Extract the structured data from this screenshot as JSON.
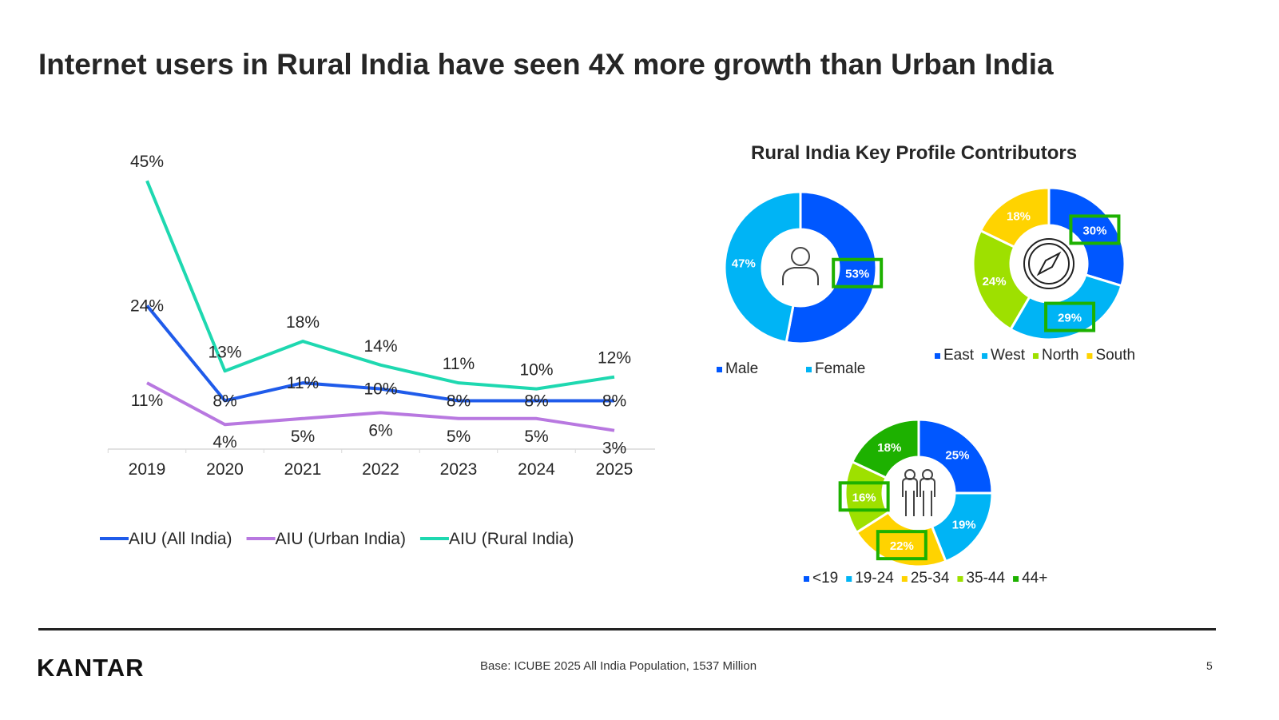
{
  "title": "Internet users in Rural India have seen 4X more growth than Urban India",
  "footer": {
    "logo": "KANTAR",
    "base": "Base: ICUBE 2025 All India Population, 1537 Million",
    "page": "5"
  },
  "chart_data": [
    {
      "type": "line",
      "categories": [
        "2019",
        "2020",
        "2021",
        "2022",
        "2023",
        "2024",
        "2025"
      ],
      "legend_position": "bottom",
      "grid": false,
      "ylim": [
        0,
        45
      ],
      "series": [
        {
          "name": "AIU (All India)",
          "color": "#1F5BEA",
          "values": [
            24,
            8,
            11,
            10,
            8,
            8,
            8
          ]
        },
        {
          "name": "AIU (Urban India)",
          "color": "#B878E0",
          "values": [
            11,
            4,
            5,
            6,
            5,
            5,
            3
          ]
        },
        {
          "name": "AIU (Rural India)",
          "color": "#1ED8B0",
          "values": [
            45,
            13,
            18,
            14,
            11,
            10,
            12
          ]
        }
      ]
    },
    {
      "type": "pie",
      "title": "Rural India Key Profile Contributors",
      "donuts": [
        {
          "icon": "person-icon",
          "slices": [
            {
              "label": "Male",
              "value": 53,
              "color": "#0057FF",
              "highlight": true
            },
            {
              "label": "Female",
              "value": 47,
              "color": "#00B4F5",
              "highlight": false
            }
          ]
        },
        {
          "icon": "compass-icon",
          "slices": [
            {
              "label": "East",
              "value": 30,
              "color": "#0057FF",
              "highlight": true
            },
            {
              "label": "West",
              "value": 29,
              "color": "#00B4F5",
              "highlight": true
            },
            {
              "label": "North",
              "value": 24,
              "color": "#9EE000",
              "highlight": false
            },
            {
              "label": "South",
              "value": 18,
              "color": "#FFD300",
              "highlight": false
            }
          ]
        },
        {
          "icon": "people-icon",
          "slices": [
            {
              "label": "<19",
              "value": 25,
              "color": "#0057FF",
              "highlight": false
            },
            {
              "label": "19-24",
              "value": 19,
              "color": "#00B4F5",
              "highlight": false
            },
            {
              "label": "25-34",
              "value": 22,
              "color": "#FFD300",
              "highlight": true
            },
            {
              "label": "35-44",
              "value": 16,
              "color": "#9EE000",
              "highlight": true
            },
            {
              "label": "44+",
              "value": 18,
              "color": "#1DB100",
              "highlight": false
            }
          ]
        }
      ]
    }
  ]
}
